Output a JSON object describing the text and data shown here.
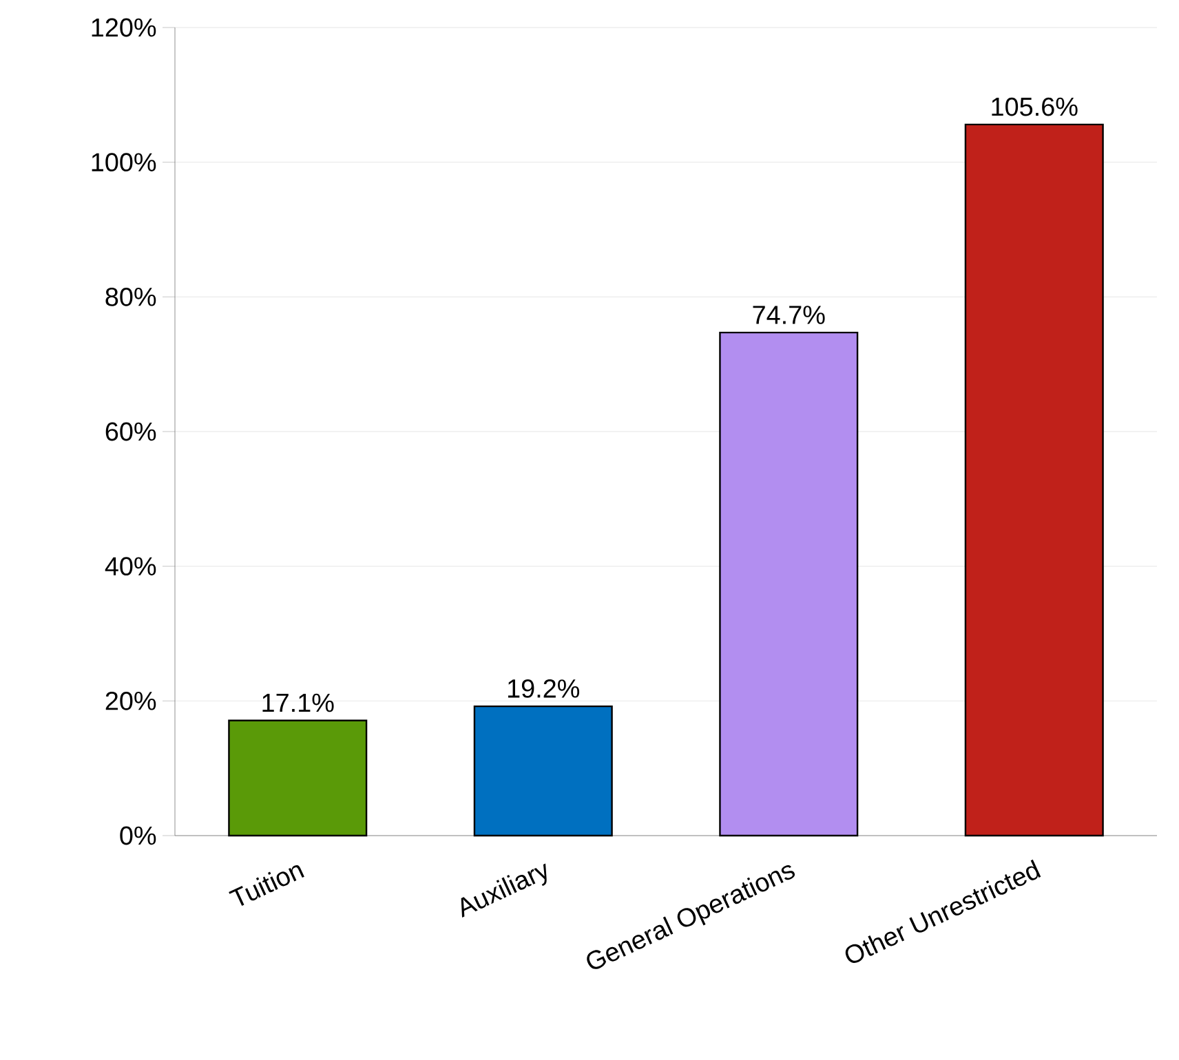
{
  "chart_data": {
    "type": "bar",
    "categories": [
      "Tuition",
      "Auxiliary",
      "General Operations",
      "Other Unrestricted"
    ],
    "values": [
      17.1,
      19.2,
      74.7,
      105.6
    ],
    "colors": [
      "#5a9a08",
      "#0070c0",
      "#b28ef0",
      "#c0211a"
    ],
    "value_labels": [
      "17.1%",
      "19.2%",
      "74.7%",
      "105.6%"
    ],
    "ylim": [
      0,
      120
    ],
    "yticks": [
      {
        "value": 0,
        "label": "0%"
      },
      {
        "value": 20,
        "label": "20%"
      },
      {
        "value": 40,
        "label": "40%"
      },
      {
        "value": 60,
        "label": "60%"
      },
      {
        "value": 80,
        "label": "80%"
      },
      {
        "value": 100,
        "label": "100%"
      },
      {
        "value": 120,
        "label": "120%"
      }
    ],
    "grid": "y"
  }
}
